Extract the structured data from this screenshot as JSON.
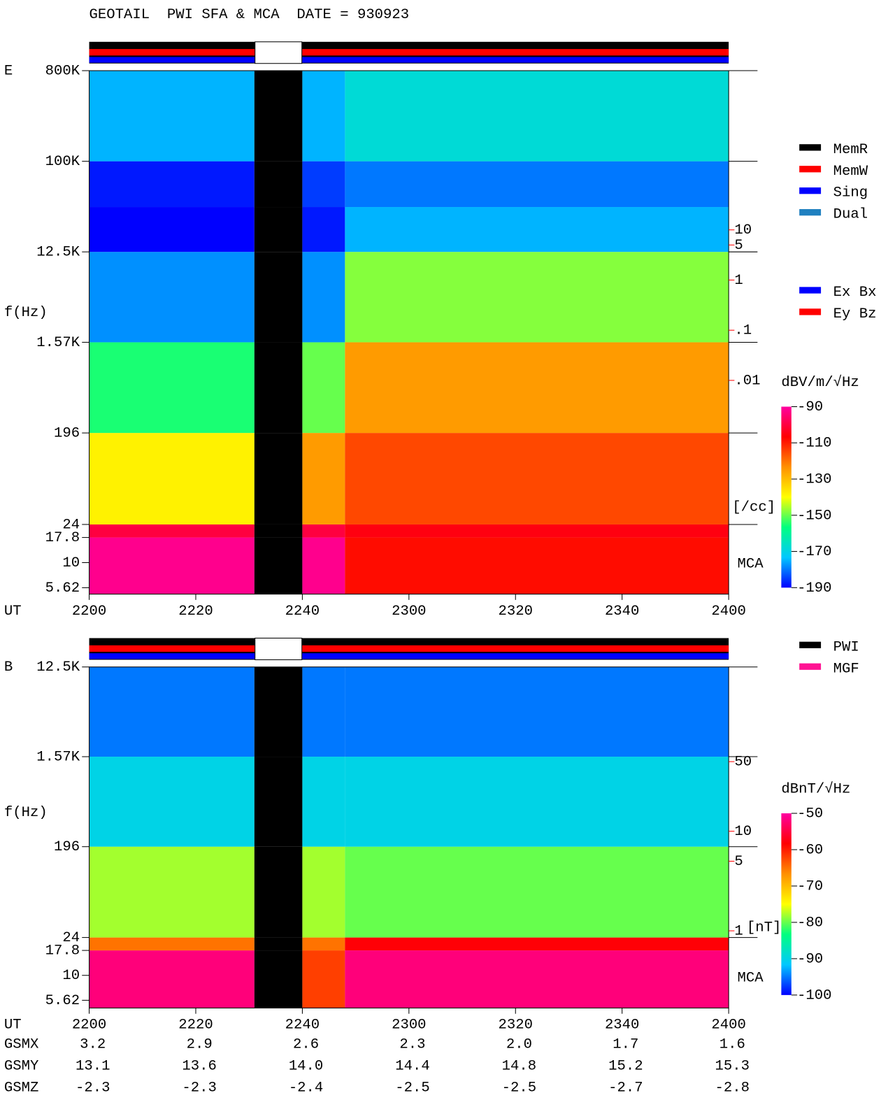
{
  "title": "GEOTAIL  PWI SFA & MCA  DATE = 930923",
  "chart_data": [
    {
      "type": "spectrogram",
      "panel_label": "E",
      "y_label": "f(Hz)",
      "x_label": "UT",
      "yscale": "log",
      "mca_label": "MCA",
      "xlim": [
        0,
        120
      ],
      "xticks": [
        {
          "value": 0,
          "label": "2200"
        },
        {
          "value": 20,
          "label": "2220"
        },
        {
          "value": 40,
          "label": "2240"
        },
        {
          "value": 60,
          "label": "2300"
        },
        {
          "value": 80,
          "label": "2320"
        },
        {
          "value": 100,
          "label": "2340"
        },
        {
          "value": 120,
          "label": "2400"
        }
      ],
      "ylim": [
        4.85,
        800000
      ],
      "yticks": [
        {
          "value": 800000,
          "label": "800K"
        },
        {
          "value": 100000,
          "label": "100K"
        },
        {
          "value": 12500,
          "label": "12.5K"
        },
        {
          "value": 1570,
          "label": "1.57K"
        },
        196,
        24,
        17.8,
        10,
        5.62
      ],
      "x_edges": [
        0,
        31,
        40,
        48,
        120
      ],
      "y_edges": [
        4.85,
        17.8,
        24,
        196,
        1570,
        12500,
        35000,
        100000,
        800000
      ],
      "values": [
        [
          -92,
          null,
          -92,
          -108
        ],
        [
          -100,
          null,
          -100,
          -105
        ],
        [
          -138,
          null,
          -125,
          -115
        ],
        [
          -155,
          null,
          -150,
          -125
        ],
        [
          -178,
          null,
          -178,
          -148
        ],
        [
          -190,
          null,
          -188,
          -175
        ],
        [
          -188,
          null,
          -185,
          -180
        ],
        [
          -175,
          null,
          -175,
          -168
        ]
      ],
      "colorbar": {
        "label": "dBV/m/√Hz",
        "clim": [
          -190,
          -90
        ],
        "ticks": [
          -90,
          -110,
          -130,
          -150,
          -170,
          -190
        ],
        "colormap": [
          "#0000ff",
          "#00c8ff",
          "#00ff80",
          "#ffff00",
          "#ff9000",
          "#ff0000",
          "#ff00a0"
        ]
      },
      "right_axis": {
        "ticks": [
          {
            "value": 10,
            "label": "10"
          },
          {
            "value": 5,
            "label": "5"
          },
          {
            "value": 1,
            "label": "1"
          },
          {
            "value": 0.1,
            "label": ".1"
          },
          {
            "value": 0.01,
            "label": ".01"
          }
        ],
        "unit": "[/cc]",
        "color": "#ff0000"
      },
      "legend_groups": [
        [
          {
            "name": "MemR",
            "color": "#000000"
          },
          {
            "name": "MemW",
            "color": "#ff0000"
          },
          {
            "name": "Sing",
            "color": "#0000ff"
          },
          {
            "name": "Dual",
            "color": "#2080c0"
          }
        ],
        [
          {
            "name": "Ex Bx",
            "color": "#0000ff"
          },
          {
            "name": "Ey Bz",
            "color": "#ff0000"
          }
        ]
      ]
    },
    {
      "type": "spectrogram",
      "panel_label": "B",
      "y_label": "f(Hz)",
      "x_label": "UT",
      "yscale": "log",
      "mca_label": "MCA",
      "xlim": [
        0,
        120
      ],
      "xticks": [
        {
          "value": 0,
          "label": "2200"
        },
        {
          "value": 20,
          "label": "2220"
        },
        {
          "value": 40,
          "label": "2240"
        },
        {
          "value": 60,
          "label": "2300"
        },
        {
          "value": 80,
          "label": "2320"
        },
        {
          "value": 100,
          "label": "2340"
        },
        {
          "value": 120,
          "label": "2400"
        }
      ],
      "ylim": [
        4.7,
        12500
      ],
      "yticks": [
        {
          "value": 12500,
          "label": "12.5K"
        },
        {
          "value": 1570,
          "label": "1.57K"
        },
        196,
        24,
        17.8,
        10,
        5.62
      ],
      "x_edges": [
        0,
        31,
        40,
        48,
        120
      ],
      "y_edges": [
        4.7,
        17.8,
        24,
        196,
        1570,
        12500
      ],
      "values": [
        [
          -52,
          null,
          -62,
          -52
        ],
        [
          -65,
          null,
          -65,
          -58
        ],
        [
          -78,
          null,
          -78,
          -80
        ],
        [
          -90,
          null,
          -90,
          -90
        ],
        [
          -95,
          null,
          -95,
          -95
        ]
      ],
      "colorbar": {
        "label": "dBnT/√Hz",
        "clim": [
          -100,
          -50
        ],
        "ticks": [
          -50,
          -60,
          -70,
          -80,
          -90,
          -100
        ],
        "colormap": [
          "#0000ff",
          "#00c8ff",
          "#00ff80",
          "#ffff00",
          "#ff9000",
          "#ff0000",
          "#ff00a0"
        ]
      },
      "right_axis": {
        "ticks": [
          {
            "value": 50,
            "label": "50"
          },
          {
            "value": 10,
            "label": "10"
          },
          {
            "value": 5,
            "label": "5"
          },
          {
            "value": 1,
            "label": "1"
          }
        ],
        "unit": "[nT]",
        "color": "#ff0000"
      },
      "legend_groups": [
        [
          {
            "name": "PWI",
            "color": "#000000"
          },
          {
            "name": "MGF",
            "color": "#ff1493"
          }
        ]
      ]
    }
  ],
  "orbit": {
    "labels": [
      "GSMX",
      "GSMY",
      "GSMZ"
    ],
    "rows": [
      [
        "3.2",
        "2.9",
        "2.6",
        "2.3",
        "2.0",
        "1.7",
        "1.6"
      ],
      [
        "13.1",
        "13.6",
        "14.0",
        "14.4",
        "14.8",
        "15.2",
        "15.3"
      ],
      [
        "-2.3",
        "-2.3",
        "-2.4",
        "-2.5",
        "-2.5",
        "-2.7",
        "-2.8"
      ]
    ]
  }
}
